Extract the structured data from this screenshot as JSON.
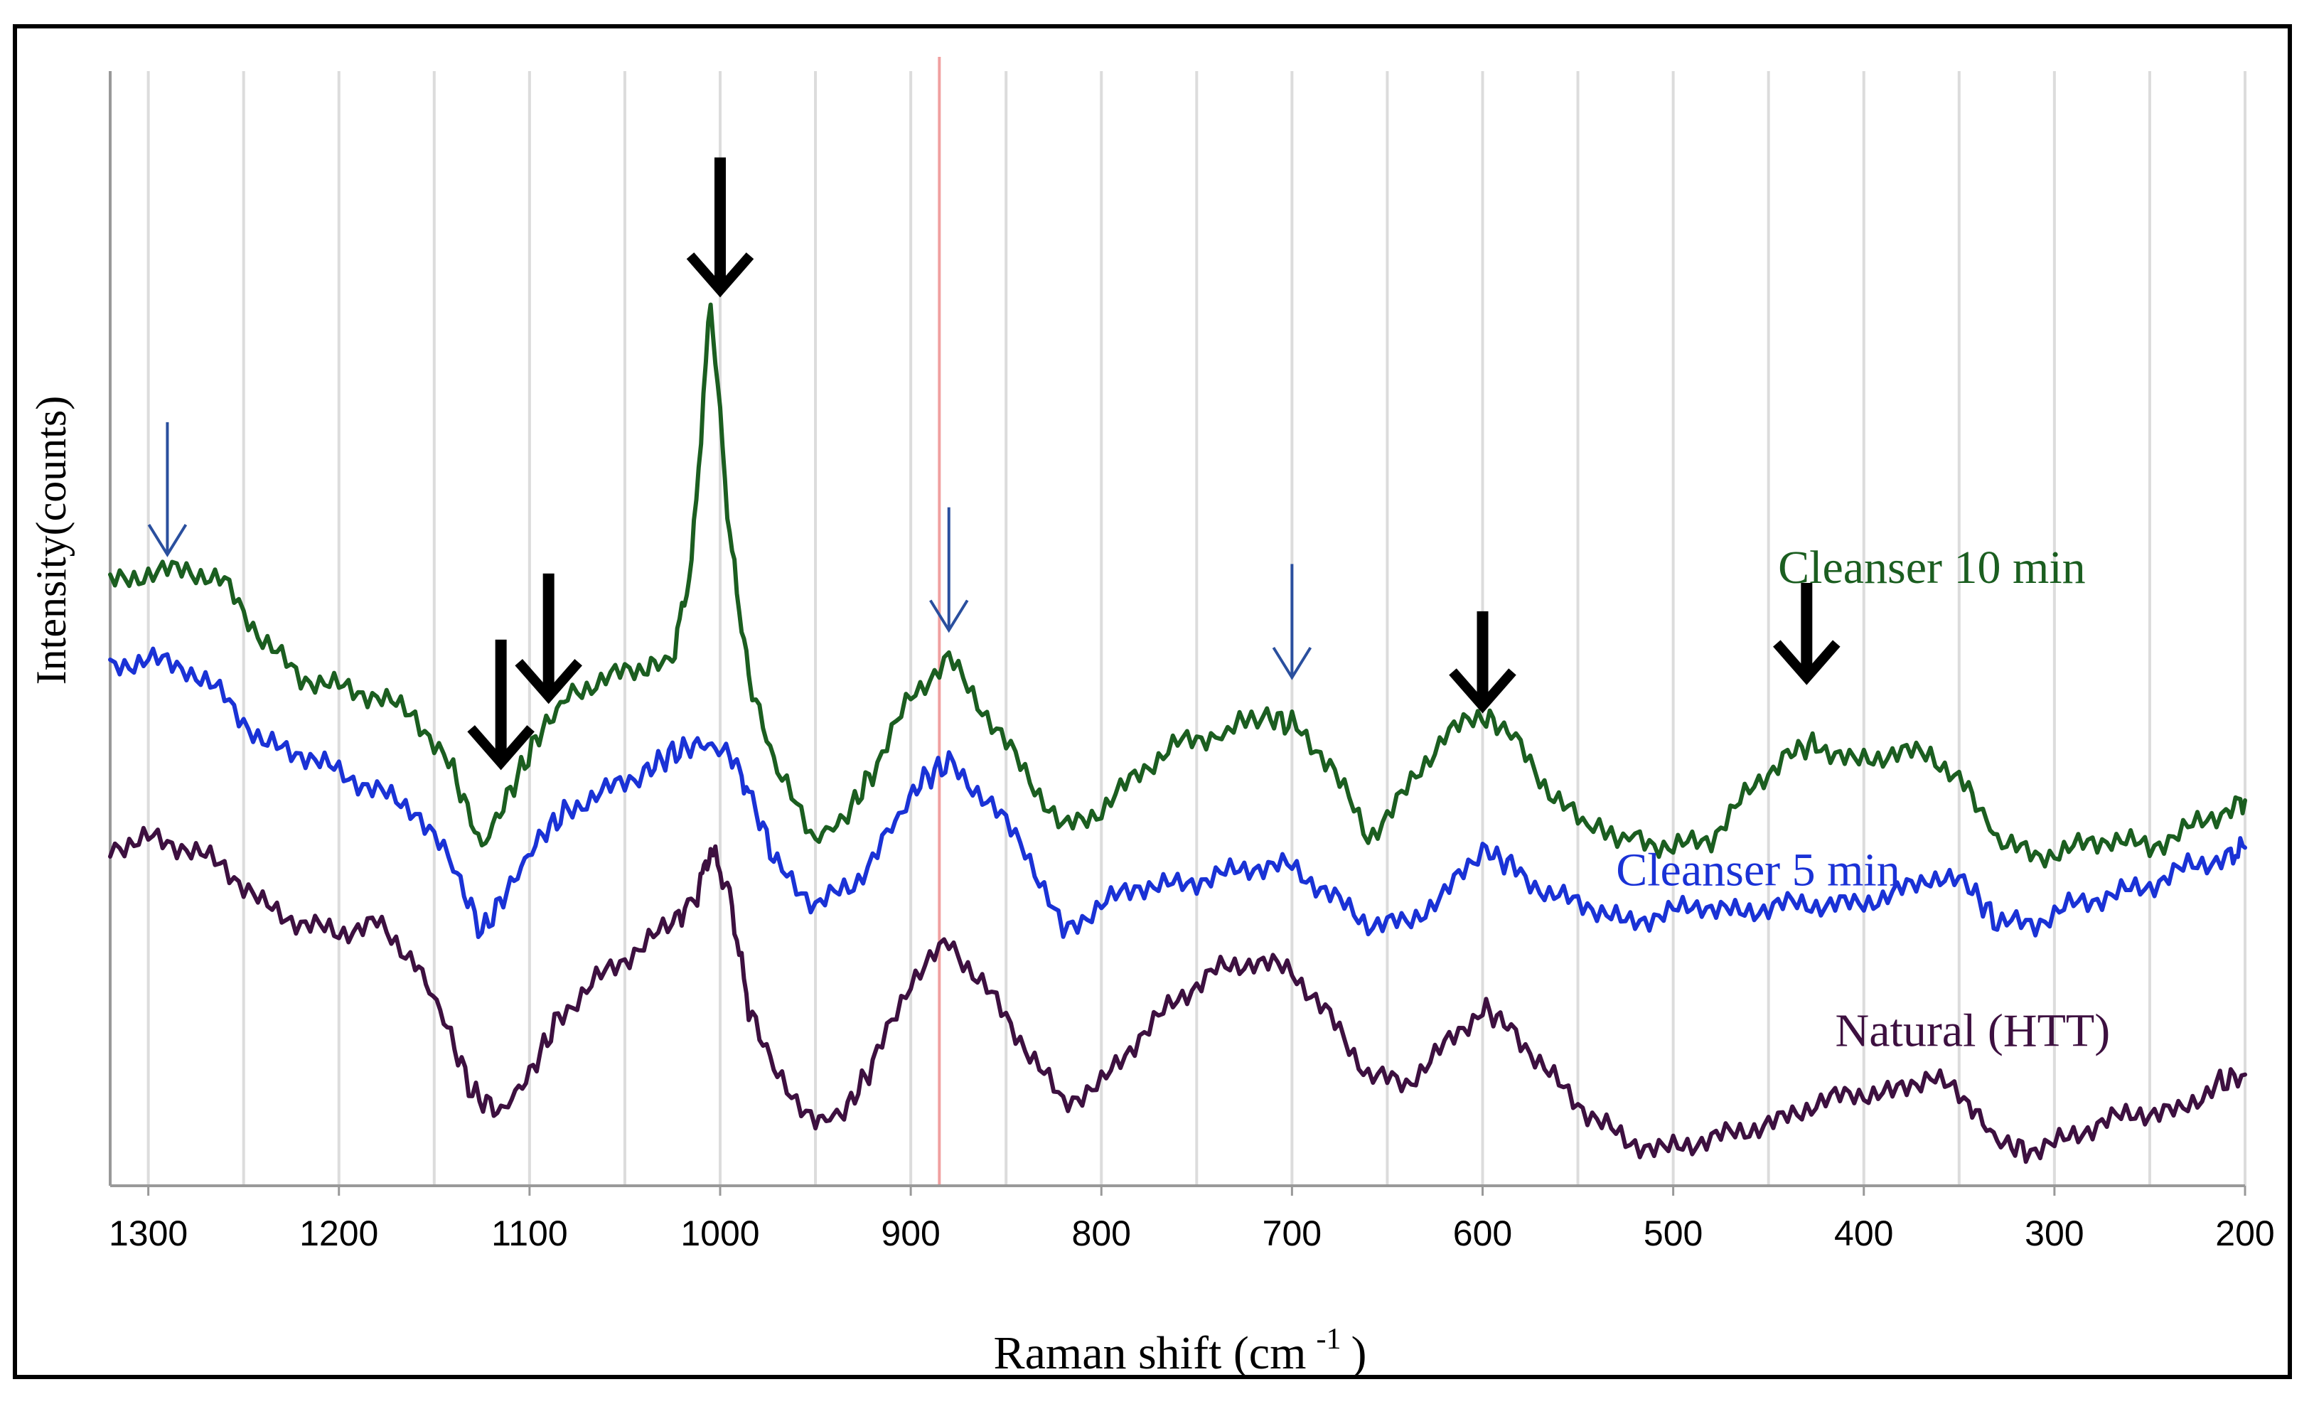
{
  "chart_data": {
    "type": "line",
    "title": "",
    "xlabel_main": "Raman shift (cm",
    "xlabel_sup": "-1",
    "xlabel_end": ")",
    "ylabel": "Intensity(counts)",
    "xlim": [
      1320,
      200
    ],
    "x_ticks": [
      1300,
      1200,
      1100,
      1000,
      900,
      800,
      700,
      600,
      500,
      400,
      300,
      200
    ],
    "x_tick_labels": [
      "1300",
      "1200",
      "1100",
      "1000",
      "900",
      "800",
      "700",
      "600",
      "500",
      "400",
      "300",
      "200"
    ],
    "grid_every": 50,
    "reference_line_x": 885,
    "ylim": [
      0,
      100
    ],
    "series": [
      {
        "name": "Cleanser 10 min",
        "color": "#1b5e20",
        "label_anchor": [
          445,
          60
        ],
        "points": [
          [
            1320,
            60
          ],
          [
            1300,
            61
          ],
          [
            1280,
            61.5
          ],
          [
            1260,
            60
          ],
          [
            1240,
            54
          ],
          [
            1220,
            50
          ],
          [
            1200,
            49
          ],
          [
            1180,
            48
          ],
          [
            1160,
            46
          ],
          [
            1140,
            40
          ],
          [
            1125,
            32
          ],
          [
            1110,
            38
          ],
          [
            1095,
            44
          ],
          [
            1080,
            48
          ],
          [
            1060,
            50
          ],
          [
            1040,
            51
          ],
          [
            1025,
            52
          ],
          [
            1015,
            62
          ],
          [
            1005,
            90
          ],
          [
            995,
            65
          ],
          [
            985,
            50
          ],
          [
            970,
            40
          ],
          [
            950,
            33
          ],
          [
            935,
            35
          ],
          [
            920,
            40
          ],
          [
            900,
            48
          ],
          [
            880,
            52
          ],
          [
            860,
            46
          ],
          [
            840,
            40
          ],
          [
            820,
            34
          ],
          [
            800,
            36
          ],
          [
            780,
            40
          ],
          [
            760,
            43
          ],
          [
            740,
            44
          ],
          [
            715,
            46
          ],
          [
            700,
            45
          ],
          [
            680,
            41
          ],
          [
            660,
            33
          ],
          [
            640,
            38
          ],
          [
            620,
            44
          ],
          [
            600,
            46
          ],
          [
            585,
            44
          ],
          [
            565,
            38
          ],
          [
            545,
            34
          ],
          [
            520,
            33
          ],
          [
            500,
            32
          ],
          [
            480,
            33
          ],
          [
            460,
            38
          ],
          [
            440,
            42
          ],
          [
            425,
            43
          ],
          [
            405,
            41
          ],
          [
            385,
            42
          ],
          [
            365,
            42
          ],
          [
            345,
            38
          ],
          [
            330,
            33
          ],
          [
            310,
            31
          ],
          [
            290,
            32
          ],
          [
            270,
            33
          ],
          [
            250,
            32
          ],
          [
            230,
            34
          ],
          [
            210,
            36
          ],
          [
            200,
            37
          ]
        ]
      },
      {
        "name": "Cleanser 5 min",
        "color": "#1a32d6",
        "label_anchor": [
          530,
          28
        ],
        "points": [
          [
            1320,
            51
          ],
          [
            1300,
            52
          ],
          [
            1280,
            51
          ],
          [
            1260,
            48
          ],
          [
            1240,
            43
          ],
          [
            1220,
            42
          ],
          [
            1200,
            40
          ],
          [
            1180,
            38
          ],
          [
            1160,
            36
          ],
          [
            1140,
            30
          ],
          [
            1125,
            23
          ],
          [
            1110,
            28
          ],
          [
            1095,
            33
          ],
          [
            1080,
            36
          ],
          [
            1060,
            38
          ],
          [
            1040,
            40
          ],
          [
            1025,
            42
          ],
          [
            1010,
            43
          ],
          [
            995,
            42
          ],
          [
            985,
            38
          ],
          [
            970,
            30
          ],
          [
            950,
            26
          ],
          [
            930,
            28
          ],
          [
            910,
            34
          ],
          [
            895,
            39
          ],
          [
            880,
            41
          ],
          [
            860,
            37
          ],
          [
            840,
            32
          ],
          [
            820,
            23
          ],
          [
            800,
            26
          ],
          [
            780,
            28
          ],
          [
            760,
            28
          ],
          [
            740,
            29
          ],
          [
            720,
            30
          ],
          [
            700,
            30
          ],
          [
            680,
            27
          ],
          [
            660,
            24
          ],
          [
            640,
            24
          ],
          [
            620,
            27
          ],
          [
            600,
            32
          ],
          [
            585,
            30
          ],
          [
            565,
            27
          ],
          [
            545,
            26
          ],
          [
            525,
            24
          ],
          [
            505,
            25
          ],
          [
            485,
            26
          ],
          [
            465,
            25
          ],
          [
            445,
            26
          ],
          [
            425,
            26
          ],
          [
            405,
            26
          ],
          [
            385,
            27
          ],
          [
            365,
            29
          ],
          [
            345,
            28
          ],
          [
            330,
            24
          ],
          [
            310,
            24
          ],
          [
            290,
            26
          ],
          [
            270,
            27
          ],
          [
            250,
            28
          ],
          [
            230,
            30
          ],
          [
            210,
            31
          ],
          [
            200,
            32
          ]
        ]
      },
      {
        "name": "Natural (HTT)",
        "color": "#3d1040",
        "label_anchor": [
          415,
          11
        ],
        "points": [
          [
            1320,
            32
          ],
          [
            1300,
            33
          ],
          [
            1280,
            32
          ],
          [
            1260,
            30
          ],
          [
            1240,
            26
          ],
          [
            1220,
            24
          ],
          [
            1200,
            23
          ],
          [
            1180,
            24
          ],
          [
            1160,
            20
          ],
          [
            1145,
            14
          ],
          [
            1130,
            6
          ],
          [
            1115,
            4
          ],
          [
            1100,
            8
          ],
          [
            1085,
            14
          ],
          [
            1065,
            18
          ],
          [
            1045,
            21
          ],
          [
            1025,
            24
          ],
          [
            1012,
            27
          ],
          [
            1005,
            32
          ],
          [
            995,
            27
          ],
          [
            985,
            15
          ],
          [
            970,
            8
          ],
          [
            950,
            3
          ],
          [
            935,
            4
          ],
          [
            920,
            9
          ],
          [
            900,
            18
          ],
          [
            880,
            22
          ],
          [
            860,
            17
          ],
          [
            840,
            11
          ],
          [
            820,
            5
          ],
          [
            800,
            7
          ],
          [
            780,
            12
          ],
          [
            760,
            16
          ],
          [
            740,
            19
          ],
          [
            720,
            20
          ],
          [
            700,
            19
          ],
          [
            680,
            14
          ],
          [
            660,
            8
          ],
          [
            640,
            7
          ],
          [
            620,
            11
          ],
          [
            600,
            15
          ],
          [
            585,
            13
          ],
          [
            565,
            8
          ],
          [
            545,
            4
          ],
          [
            525,
            1
          ],
          [
            505,
            0
          ],
          [
            485,
            1
          ],
          [
            465,
            2
          ],
          [
            445,
            3
          ],
          [
            425,
            5
          ],
          [
            405,
            6
          ],
          [
            385,
            6
          ],
          [
            365,
            8
          ],
          [
            345,
            5
          ],
          [
            330,
            1
          ],
          [
            315,
            0
          ],
          [
            295,
            1
          ],
          [
            275,
            3
          ],
          [
            255,
            4
          ],
          [
            235,
            4
          ],
          [
            215,
            7
          ],
          [
            200,
            8
          ]
        ]
      }
    ],
    "arrows_bold": [
      {
        "x": 1000,
        "tip": 91,
        "tail": 105
      },
      {
        "x": 1115,
        "tip": 41,
        "tail": 54
      },
      {
        "x": 1090,
        "tip": 48,
        "tail": 61
      },
      {
        "x": 600,
        "tip": 47,
        "tail": 57
      },
      {
        "x": 430,
        "tip": 50,
        "tail": 60
      }
    ],
    "arrows_thin": [
      {
        "x": 1290,
        "tip": 63,
        "tail": 77
      },
      {
        "x": 880,
        "tip": 55,
        "tail": 68
      },
      {
        "x": 700,
        "tip": 50,
        "tail": 62
      }
    ],
    "arrow_thin_color": "#2a4f9e",
    "ref_line_color": "#f0a0a0",
    "grid_color": "#dcdcdc",
    "axis_color": "#999999"
  }
}
